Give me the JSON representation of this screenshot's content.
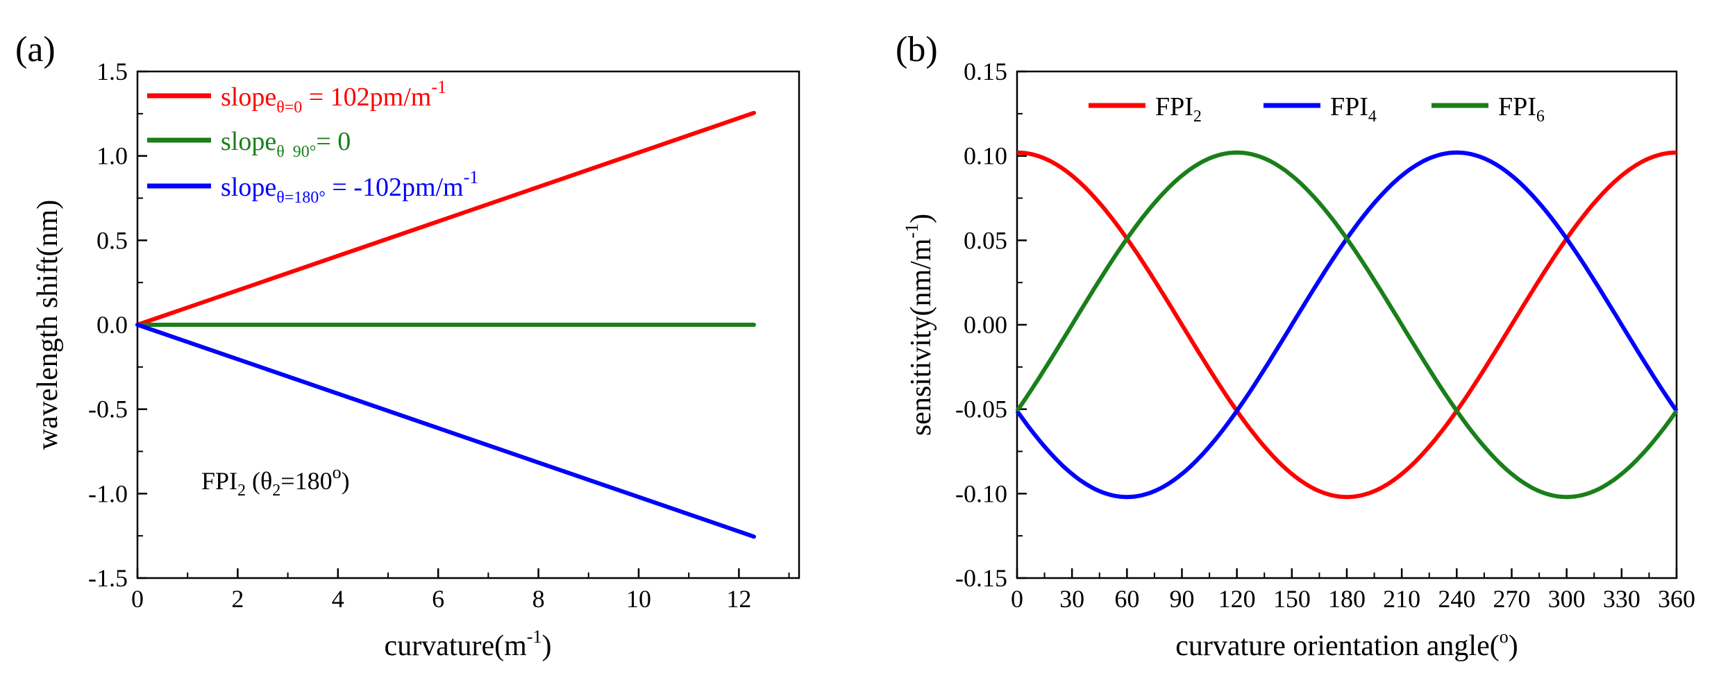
{
  "chart_data": [
    {
      "type": "line",
      "panel_label": "(a)",
      "xlabel": "curvature(m",
      "xlabel_sup": "-1",
      "xlabel_end": ")",
      "ylabel": "wavelength shift(nm)",
      "xlim": [
        0,
        13.2
      ],
      "ylim": [
        -1.5,
        1.5
      ],
      "xticks": [
        0,
        2,
        4,
        6,
        8,
        10,
        12
      ],
      "yticks": [
        1.5,
        1.0,
        0.5,
        0.0,
        -0.5,
        -1.0,
        -1.5
      ],
      "ytick_labels": [
        "1.5",
        "1.0",
        "0.5",
        "0.0",
        "-0.5",
        "-1.0",
        "-1.5"
      ],
      "annotation": {
        "pre": "FPI",
        "sub1": "2",
        "mid": " (θ",
        "sub2": "2",
        "post": "=180",
        "sup": "o",
        "end": ")"
      },
      "series": [
        {
          "name": "slope θ=0",
          "color": "#ff0000",
          "x": [
            0,
            12.3
          ],
          "y": [
            0,
            1.2546
          ],
          "legend": {
            "pre": "slope",
            "sub": "θ=0",
            "mid": " = 102pm/m",
            "sup": "-1"
          }
        },
        {
          "name": "slope θ 90°",
          "color": "#1a7f1a",
          "x": [
            0,
            12.3
          ],
          "y": [
            0,
            0
          ],
          "legend": {
            "pre": "slope",
            "sub": "θ  90°",
            "mid": "= 0",
            "sup": ""
          }
        },
        {
          "name": "slope θ=180°",
          "color": "#0000ff",
          "x": [
            0,
            12.3
          ],
          "y": [
            0,
            -1.2546
          ],
          "legend": {
            "pre": "slope",
            "sub": "θ=180°",
            "mid": " = -102pm/m",
            "sup": "-1"
          }
        }
      ]
    },
    {
      "type": "line",
      "panel_label": "(b)",
      "xlabel": "curvature orientation angle(",
      "xlabel_sup": "o",
      "xlabel_end": ")",
      "ylabel": "sensitivity(nm/m",
      "ylabel_sup": "-1",
      "ylabel_end": ")",
      "xlim": [
        0,
        360
      ],
      "ylim": [
        -0.15,
        0.15
      ],
      "xticks": [
        0,
        30,
        60,
        90,
        120,
        150,
        180,
        210,
        240,
        270,
        300,
        330,
        360
      ],
      "yticks": [
        0.15,
        0.1,
        0.05,
        0.0,
        -0.05,
        -0.1,
        -0.15
      ],
      "ytick_labels": [
        "0.15",
        "0.10",
        "0.05",
        "0.00",
        "-0.05",
        "-0.10",
        "-0.15"
      ],
      "amplitude": 0.102,
      "series": [
        {
          "name": "FPI2",
          "color": "#ff0000",
          "phase_deg": 0,
          "legend": {
            "pre": "FPI",
            "sub": "2"
          }
        },
        {
          "name": "FPI4",
          "color": "#0000ff",
          "phase_deg": 240,
          "legend": {
            "pre": "FPI",
            "sub": "4"
          }
        },
        {
          "name": "FPI6",
          "color": "#1a7f1a",
          "phase_deg": 120,
          "legend": {
            "pre": "FPI",
            "sub": "6"
          }
        }
      ]
    }
  ]
}
